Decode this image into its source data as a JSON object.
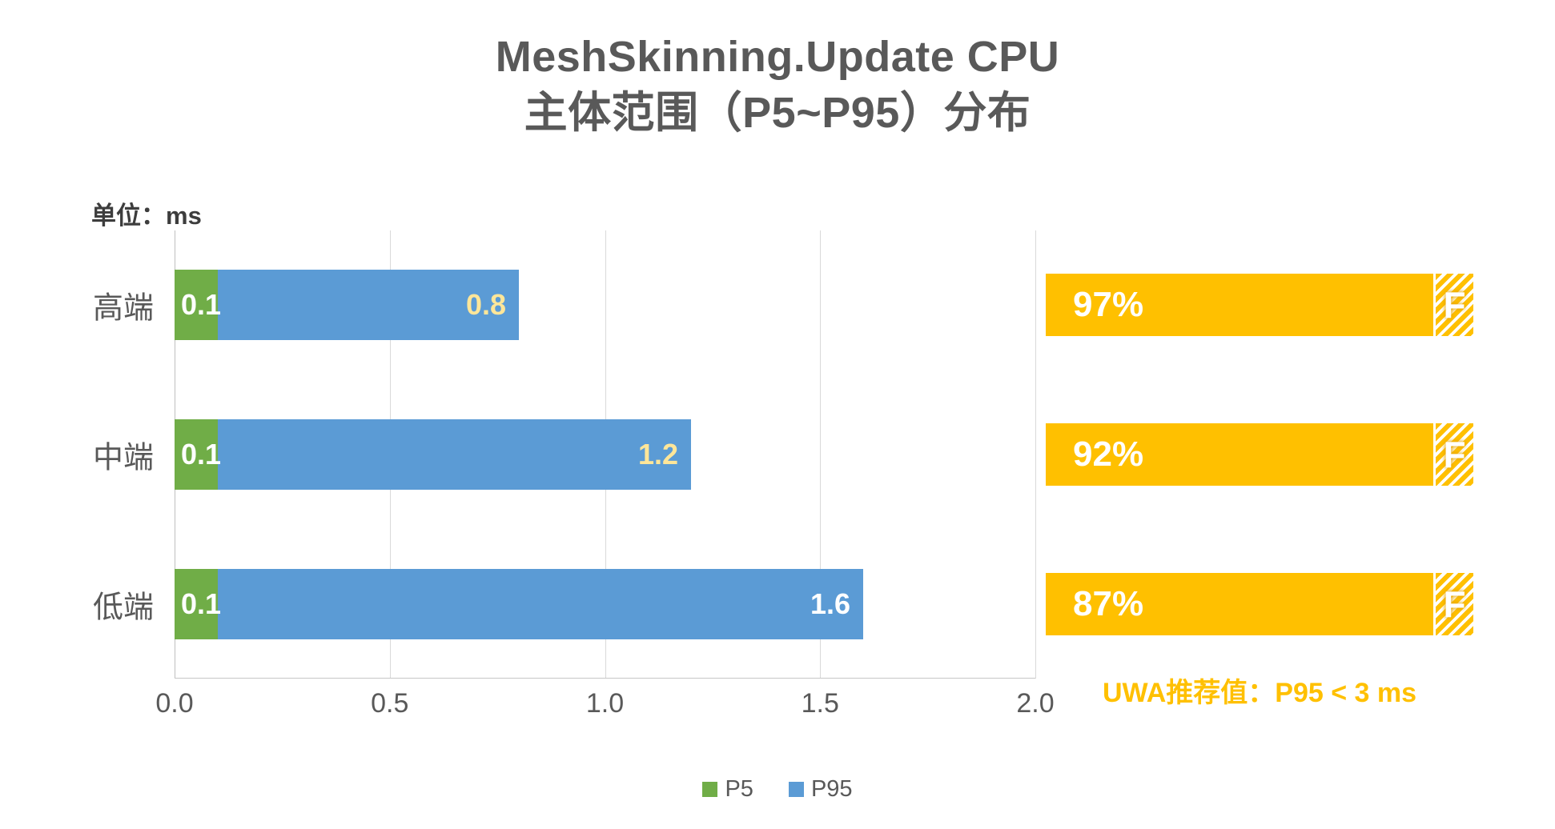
{
  "title": {
    "line1": "MeshSkinning.Update CPU",
    "line2": "主体范围（P5~P95）分布"
  },
  "unit_label": "单位：ms",
  "chart_data": {
    "type": "bar",
    "orientation": "horizontal-stacked",
    "title": "MeshSkinning.Update CPU 主体范围（P5~P95）分布",
    "unit": "ms",
    "categories": [
      "高端",
      "中端",
      "低端"
    ],
    "series": [
      {
        "name": "P5",
        "color": "#70AD47",
        "values": [
          0.1,
          0.1,
          0.1
        ]
      },
      {
        "name": "P95",
        "color": "#5B9BD5",
        "values": [
          0.8,
          1.2,
          1.6
        ]
      }
    ],
    "bar_labels": {
      "p5": [
        "0.1",
        "0.1",
        "0.1"
      ],
      "p5_color": "#FFFFFF",
      "p95": [
        "0.8",
        "1.2",
        "1.6"
      ],
      "p95_colors": [
        "#FFE699",
        "#FFE699",
        "#FFFFFF"
      ]
    },
    "xlim": [
      0,
      2
    ],
    "xticks": [
      {
        "value": 0,
        "label": "0.0"
      },
      {
        "value": 0.5,
        "label": "0.5"
      },
      {
        "value": 1.0,
        "label": "1.0"
      },
      {
        "value": 1.5,
        "label": "1.5"
      },
      {
        "value": 2.0,
        "label": "2.0"
      }
    ],
    "grid": true,
    "legend_position": "bottom",
    "grade_badges": [
      {
        "percent": "97%",
        "grade": "F"
      },
      {
        "percent": "92%",
        "grade": "F"
      },
      {
        "percent": "87%",
        "grade": "F"
      }
    ],
    "badge_color": "#FFC000",
    "recommendation": "UWA推荐值：P95 < 3 ms",
    "legend": [
      {
        "label": "P5",
        "color": "#70AD47"
      },
      {
        "label": "P95",
        "color": "#5B9BD5"
      }
    ]
  },
  "colors": {
    "title_text": "#595959",
    "axis_text": "#595959",
    "gridline": "#D9D9D9",
    "recommendation_text": "#FFC000",
    "badge": "#FFC000",
    "p5": "#70AD47",
    "p95": "#5B9BD5"
  }
}
